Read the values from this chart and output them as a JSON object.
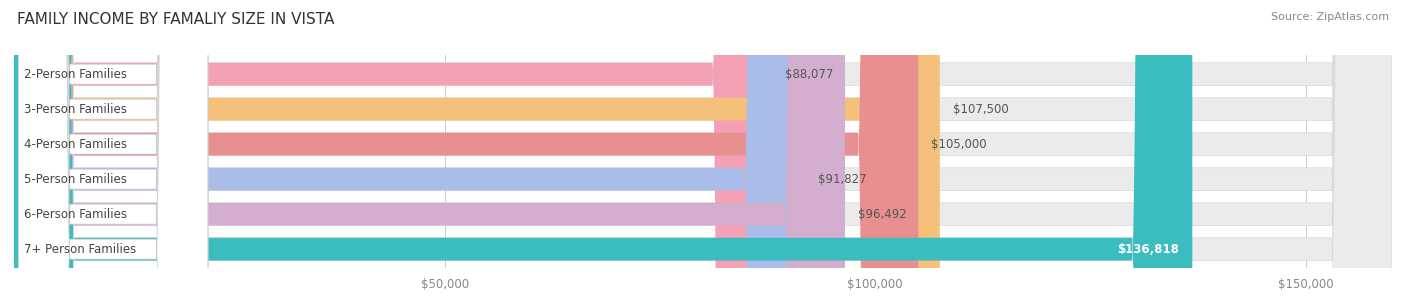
{
  "title": "FAMILY INCOME BY FAMALIY SIZE IN VISTA",
  "source": "Source: ZipAtlas.com",
  "categories": [
    "2-Person Families",
    "3-Person Families",
    "4-Person Families",
    "5-Person Families",
    "6-Person Families",
    "7+ Person Families"
  ],
  "values": [
    88077,
    107500,
    105000,
    91827,
    96492,
    136818
  ],
  "labels": [
    "$88,077",
    "$107,500",
    "$105,000",
    "$91,827",
    "$96,492",
    "$136,818"
  ],
  "bar_colors": [
    "#F4A0B5",
    "#F5C07A",
    "#E89090",
    "#AABDE8",
    "#D4AECE",
    "#3BBCBE"
  ],
  "label_colors": [
    "#666666",
    "#666666",
    "#666666",
    "#666666",
    "#666666",
    "#FFFFFF"
  ],
  "xlim": [
    0,
    160000
  ],
  "xticks": [
    50000,
    100000,
    150000
  ],
  "xticklabels": [
    "$50,000",
    "$100,000",
    "$150,000"
  ],
  "background_color": "#FFFFFF",
  "bar_bg_color": "#EBEBEB",
  "title_fontsize": 11,
  "source_fontsize": 8,
  "bar_label_fontsize": 8.5,
  "category_fontsize": 8.5,
  "tick_fontsize": 8.5
}
